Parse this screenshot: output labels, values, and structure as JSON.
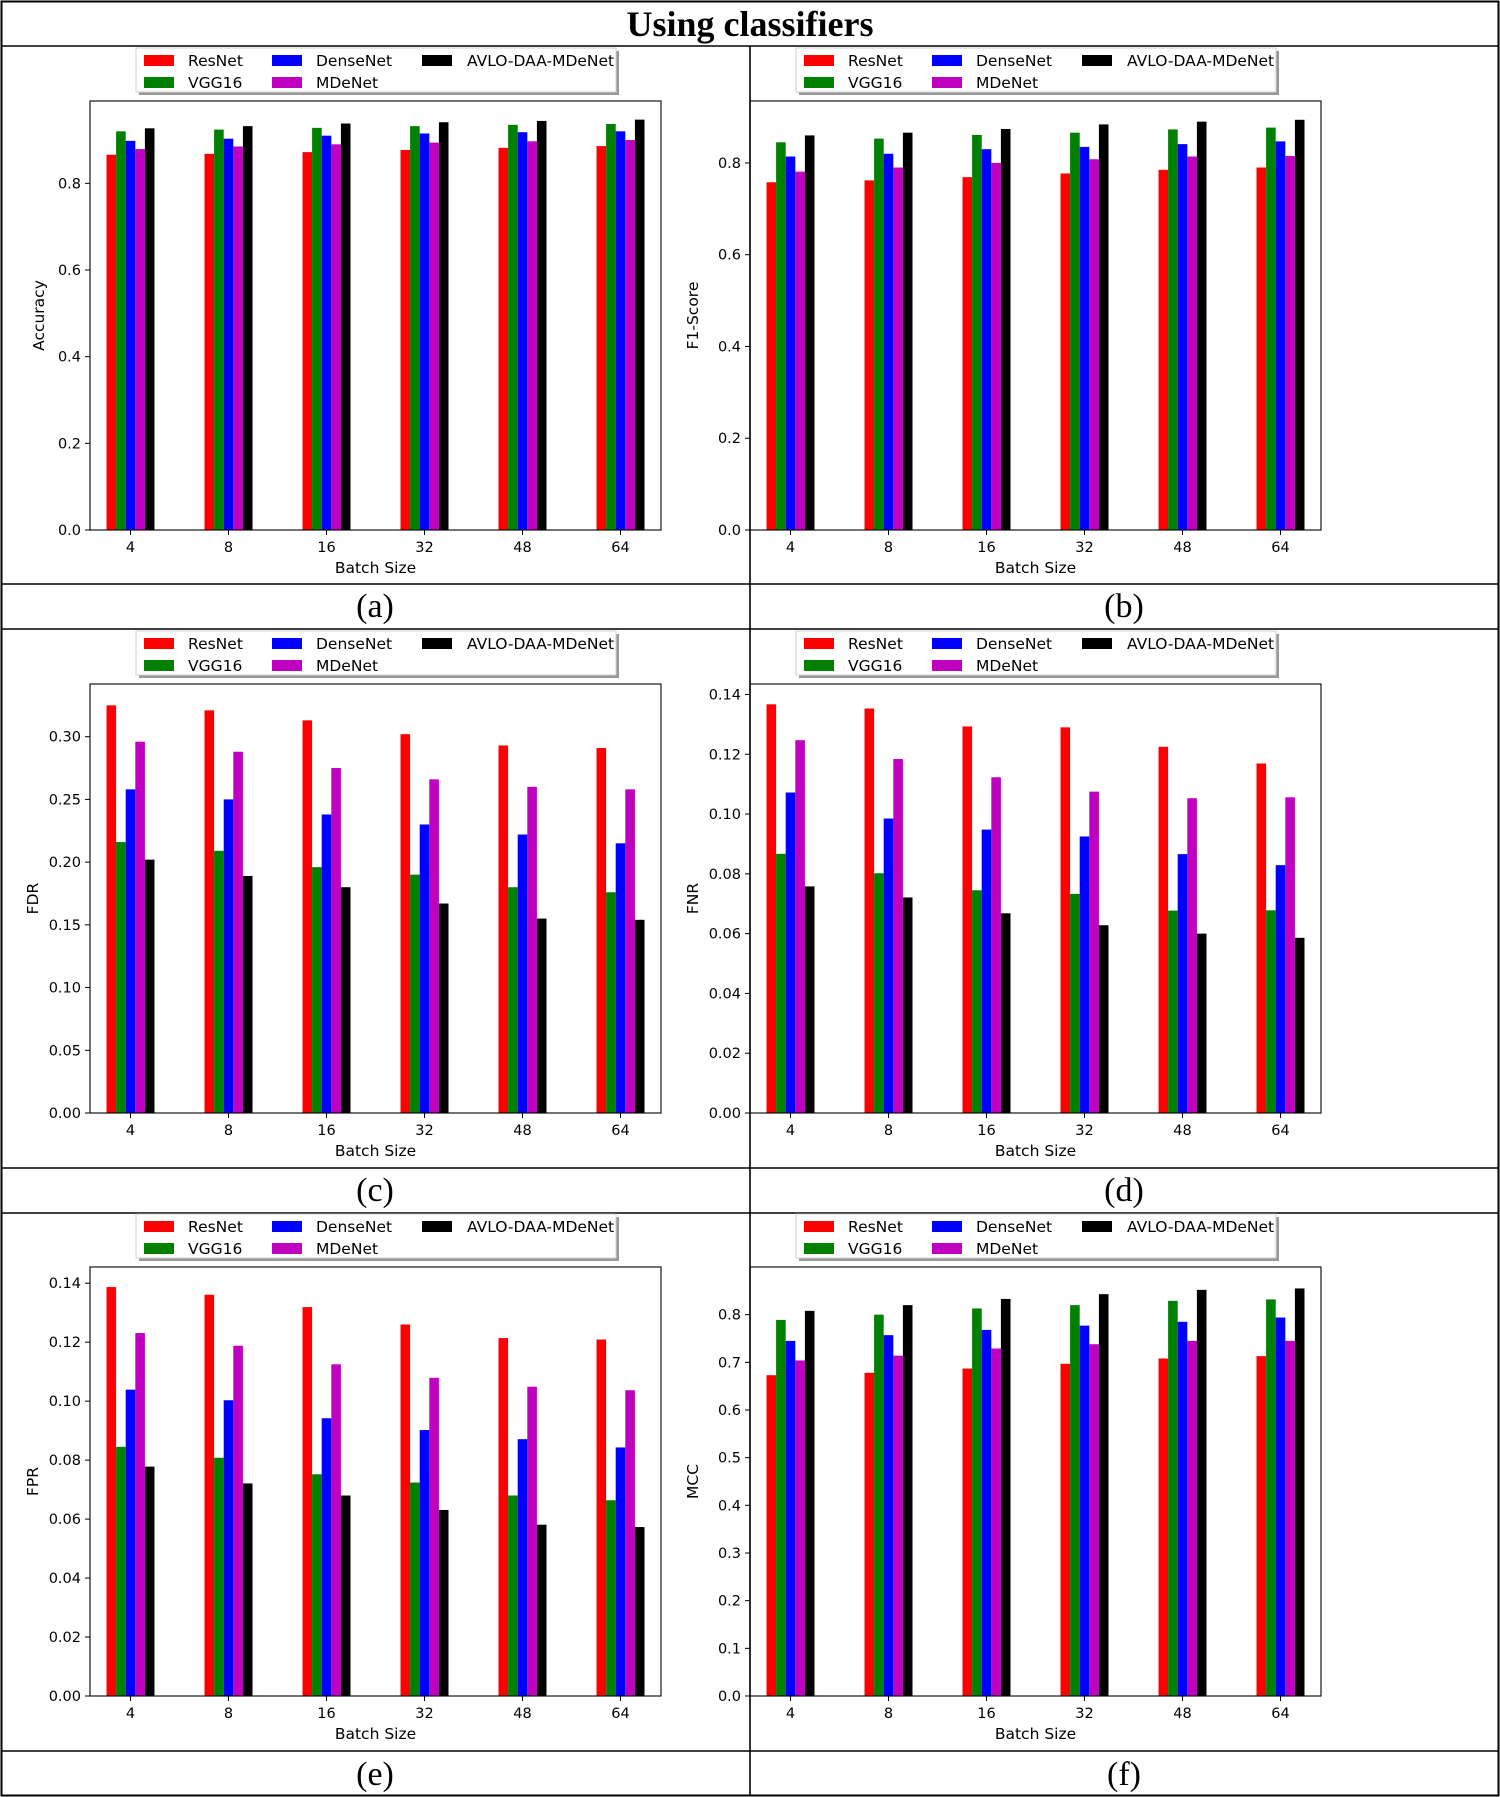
{
  "figure_title": "Using classifiers",
  "legend_labels": [
    "ResNet",
    "VGG16",
    "DenseNet",
    "MDeNet",
    "AVLO-DAA-MDeNet"
  ],
  "series_colors": [
    "#ff0000",
    "#008000",
    "#0000ff",
    "#c000c0",
    "#000000"
  ],
  "chart_data": [
    {
      "type": "bar",
      "caption": "(a)",
      "xlabel": "Batch Size",
      "ylabel": "Accuracy",
      "ylim": [
        0,
        0.99
      ],
      "yticks": [
        0.0,
        0.2,
        0.4,
        0.6,
        0.8
      ],
      "ytick_labels": [
        "0.0",
        "0.2",
        "0.4",
        "0.6",
        "0.8"
      ],
      "categories": [
        "4",
        "8",
        "16",
        "32",
        "48",
        "64"
      ],
      "series": [
        {
          "name": "ResNet",
          "values": [
            0.866,
            0.868,
            0.872,
            0.877,
            0.882,
            0.886
          ]
        },
        {
          "name": "VGG16",
          "values": [
            0.92,
            0.924,
            0.928,
            0.932,
            0.935,
            0.937
          ]
        },
        {
          "name": "DenseNet",
          "values": [
            0.898,
            0.903,
            0.91,
            0.915,
            0.918,
            0.92
          ]
        },
        {
          "name": "MDeNet",
          "values": [
            0.879,
            0.885,
            0.89,
            0.894,
            0.897,
            0.9
          ]
        },
        {
          "name": "AVLO-DAA-MDeNet",
          "values": [
            0.927,
            0.932,
            0.938,
            0.941,
            0.944,
            0.947
          ]
        }
      ]
    },
    {
      "type": "bar",
      "caption": "(b)",
      "xlabel": "Batch Size",
      "ylabel": "F1-Score",
      "ylim": [
        0,
        0.935
      ],
      "yticks": [
        0.0,
        0.2,
        0.4,
        0.6,
        0.8
      ],
      "ytick_labels": [
        "0.0",
        "0.2",
        "0.4",
        "0.6",
        "0.8"
      ],
      "categories": [
        "4",
        "8",
        "16",
        "32",
        "48",
        "64"
      ],
      "series": [
        {
          "name": "ResNet",
          "values": [
            0.758,
            0.762,
            0.769,
            0.777,
            0.785,
            0.79
          ]
        },
        {
          "name": "VGG16",
          "values": [
            0.845,
            0.853,
            0.861,
            0.866,
            0.873,
            0.877
          ]
        },
        {
          "name": "DenseNet",
          "values": [
            0.814,
            0.82,
            0.83,
            0.835,
            0.841,
            0.847
          ]
        },
        {
          "name": "MDeNet",
          "values": [
            0.781,
            0.79,
            0.8,
            0.808,
            0.814,
            0.815
          ]
        },
        {
          "name": "AVLO-DAA-MDeNet",
          "values": [
            0.86,
            0.866,
            0.874,
            0.884,
            0.89,
            0.894
          ]
        }
      ]
    },
    {
      "type": "bar",
      "caption": "(c)",
      "xlabel": "Batch Size",
      "ylabel": "FDR",
      "ylim": [
        0,
        0.342
      ],
      "yticks": [
        0.0,
        0.05,
        0.1,
        0.15,
        0.2,
        0.25,
        0.3
      ],
      "ytick_labels": [
        "0.00",
        "0.05",
        "0.10",
        "0.15",
        "0.20",
        "0.25",
        "0.30"
      ],
      "categories": [
        "4",
        "8",
        "16",
        "32",
        "48",
        "64"
      ],
      "series": [
        {
          "name": "ResNet",
          "values": [
            0.325,
            0.321,
            0.313,
            0.302,
            0.293,
            0.291
          ]
        },
        {
          "name": "VGG16",
          "values": [
            0.216,
            0.209,
            0.196,
            0.19,
            0.18,
            0.176
          ]
        },
        {
          "name": "DenseNet",
          "values": [
            0.258,
            0.25,
            0.238,
            0.23,
            0.222,
            0.215
          ]
        },
        {
          "name": "MDeNet",
          "values": [
            0.296,
            0.288,
            0.275,
            0.266,
            0.26,
            0.258
          ]
        },
        {
          "name": "AVLO-DAA-MDeNet",
          "values": [
            0.202,
            0.189,
            0.18,
            0.167,
            0.155,
            0.154
          ]
        }
      ]
    },
    {
      "type": "bar",
      "caption": "(d)",
      "xlabel": "Batch Size",
      "ylabel": "FNR",
      "ylim": [
        0,
        0.1435
      ],
      "yticks": [
        0.0,
        0.02,
        0.04,
        0.06,
        0.08,
        0.1,
        0.12,
        0.14
      ],
      "ytick_labels": [
        "0.00",
        "0.02",
        "0.04",
        "0.06",
        "0.08",
        "0.10",
        "0.12",
        "0.14"
      ],
      "categories": [
        "4",
        "8",
        "16",
        "32",
        "48",
        "64"
      ],
      "series": [
        {
          "name": "ResNet",
          "values": [
            0.1367,
            0.1353,
            0.1293,
            0.129,
            0.1225,
            0.1169
          ]
        },
        {
          "name": "VGG16",
          "values": [
            0.0867,
            0.0802,
            0.0745,
            0.0733,
            0.0677,
            0.0678
          ]
        },
        {
          "name": "DenseNet",
          "values": [
            0.1072,
            0.0985,
            0.0948,
            0.0925,
            0.0866,
            0.0829
          ]
        },
        {
          "name": "MDeNet",
          "values": [
            0.1247,
            0.1184,
            0.1123,
            0.1075,
            0.1053,
            0.1056
          ]
        },
        {
          "name": "AVLO-DAA-MDeNet",
          "values": [
            0.0758,
            0.0721,
            0.0668,
            0.0628,
            0.06,
            0.0586
          ]
        }
      ]
    },
    {
      "type": "bar",
      "caption": "(e)",
      "xlabel": "Batch Size",
      "ylabel": "FPR",
      "ylim": [
        0,
        0.1455
      ],
      "yticks": [
        0.0,
        0.02,
        0.04,
        0.06,
        0.08,
        0.1,
        0.12,
        0.14
      ],
      "ytick_labels": [
        "0.00",
        "0.02",
        "0.04",
        "0.06",
        "0.08",
        "0.10",
        "0.12",
        "0.14"
      ],
      "categories": [
        "4",
        "8",
        "16",
        "32",
        "48",
        "64"
      ],
      "series": [
        {
          "name": "ResNet",
          "values": [
            0.1387,
            0.1361,
            0.1319,
            0.126,
            0.1214,
            0.1209
          ]
        },
        {
          "name": "VGG16",
          "values": [
            0.0845,
            0.0808,
            0.0752,
            0.0724,
            0.068,
            0.0664
          ]
        },
        {
          "name": "DenseNet",
          "values": [
            0.1039,
            0.1003,
            0.0942,
            0.0902,
            0.0871,
            0.0843
          ]
        },
        {
          "name": "MDeNet",
          "values": [
            0.1231,
            0.1188,
            0.1125,
            0.1079,
            0.1049,
            0.1037
          ]
        },
        {
          "name": "AVLO-DAA-MDeNet",
          "values": [
            0.0778,
            0.0721,
            0.068,
            0.0631,
            0.0581,
            0.0573
          ]
        }
      ]
    },
    {
      "type": "bar",
      "caption": "(f)",
      "xlabel": "Batch Size",
      "ylabel": "MCC",
      "ylim": [
        0,
        0.9
      ],
      "yticks": [
        0.0,
        0.1,
        0.2,
        0.3,
        0.4,
        0.5,
        0.6,
        0.7,
        0.8
      ],
      "ytick_labels": [
        "0.0",
        "0.1",
        "0.2",
        "0.3",
        "0.4",
        "0.5",
        "0.6",
        "0.7",
        "0.8"
      ],
      "categories": [
        "4",
        "8",
        "16",
        "32",
        "48",
        "64"
      ],
      "series": [
        {
          "name": "ResNet",
          "values": [
            0.673,
            0.678,
            0.687,
            0.697,
            0.708,
            0.713
          ]
        },
        {
          "name": "VGG16",
          "values": [
            0.789,
            0.8,
            0.813,
            0.82,
            0.829,
            0.832
          ]
        },
        {
          "name": "DenseNet",
          "values": [
            0.745,
            0.757,
            0.768,
            0.777,
            0.785,
            0.794
          ]
        },
        {
          "name": "MDeNet",
          "values": [
            0.704,
            0.714,
            0.729,
            0.738,
            0.745,
            0.745
          ]
        },
        {
          "name": "AVLO-DAA-MDeNet",
          "values": [
            0.808,
            0.82,
            0.833,
            0.843,
            0.852,
            0.855
          ]
        }
      ]
    }
  ]
}
